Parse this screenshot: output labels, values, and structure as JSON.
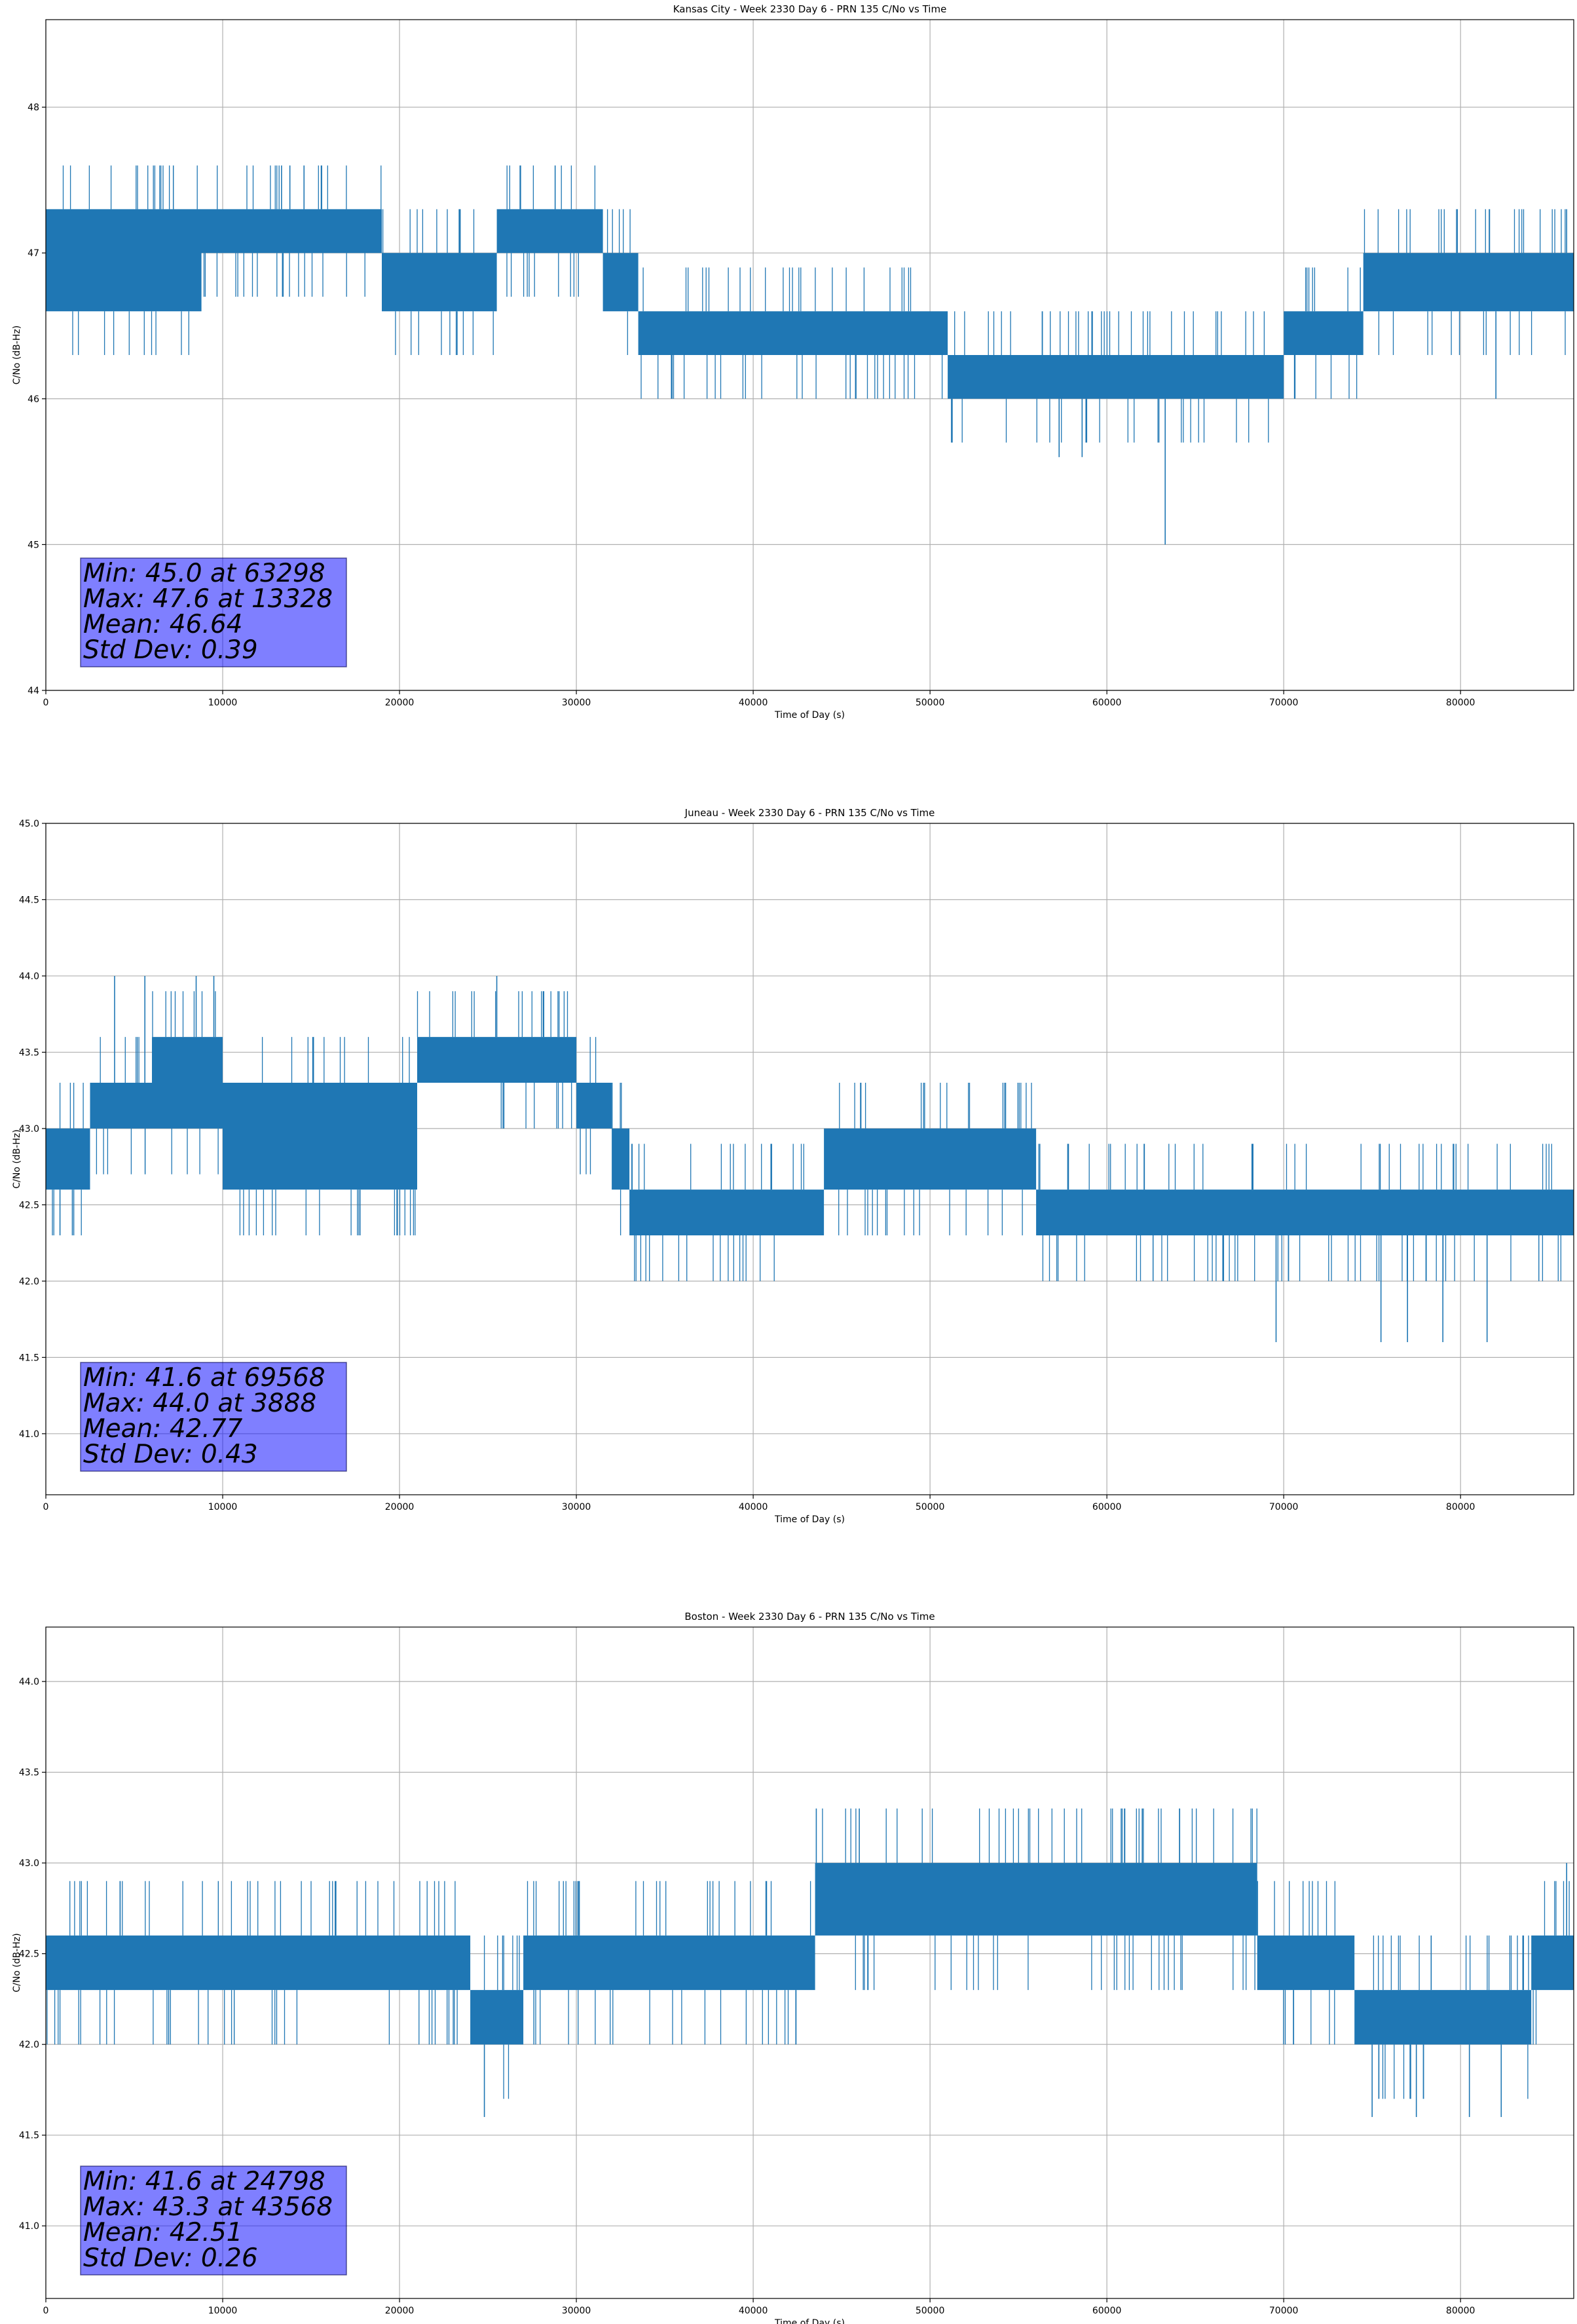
{
  "chart_data": [
    {
      "type": "line",
      "title": "Kansas City - Week 2330 Day 6 - PRN 135 C/No vs Time",
      "xlabel": "Time of Day (s)",
      "ylabel": "C/No (dB-Hz)",
      "xlim": [
        0,
        86400
      ],
      "ylim": [
        44.0,
        48.6
      ],
      "xticks": [
        0,
        10000,
        20000,
        30000,
        40000,
        50000,
        60000,
        70000,
        80000
      ],
      "xtick_labels": [
        "0",
        "10000",
        "20000",
        "30000",
        "40000",
        "50000",
        "60000",
        "70000",
        "80000"
      ],
      "yticks": [
        44,
        45,
        46,
        47,
        48
      ],
      "ytick_labels": [
        "44",
        "45",
        "46",
        "47",
        "48"
      ],
      "grid": true,
      "line_color": "#1f77b4",
      "band_segments": [
        {
          "x": [
            0,
            8800
          ],
          "low": 46.6,
          "high": 47.3
        },
        {
          "x": [
            8800,
            19000
          ],
          "low": 47.0,
          "high": 47.3
        },
        {
          "x": [
            19000,
            25500
          ],
          "low": 46.6,
          "high": 47.0
        },
        {
          "x": [
            25500,
            31500
          ],
          "low": 47.0,
          "high": 47.3
        },
        {
          "x": [
            31500,
            33500
          ],
          "low": 46.6,
          "high": 47.0
        },
        {
          "x": [
            33500,
            40000
          ],
          "low": 46.3,
          "high": 46.6
        },
        {
          "x": [
            40000,
            51000
          ],
          "low": 46.3,
          "high": 46.6
        },
        {
          "x": [
            51000,
            59000
          ],
          "low": 46.0,
          "high": 46.3
        },
        {
          "x": [
            59000,
            70000
          ],
          "low": 46.0,
          "high": 46.3
        },
        {
          "x": [
            70000,
            74500
          ],
          "low": 46.3,
          "high": 46.6
        },
        {
          "x": [
            74500,
            86400
          ],
          "low": 46.6,
          "high": 47.0
        }
      ],
      "spikes": [
        {
          "x": 13328,
          "y": 47.6
        },
        {
          "x": 13800,
          "y": 47.6
        },
        {
          "x": 14600,
          "y": 47.6
        },
        {
          "x": 28800,
          "y": 47.6
        },
        {
          "x": 63298,
          "y": 45.0
        },
        {
          "x": 57300,
          "y": 45.6
        },
        {
          "x": 58600,
          "y": 45.6
        },
        {
          "x": 82000,
          "y": 46.0
        },
        {
          "x": 86000,
          "y": 47.3
        }
      ],
      "stats_box": [
        "Min: 45.0 at 63298",
        "Max: 47.6 at 13328",
        "Mean: 46.64",
        "Std Dev: 0.39"
      ]
    },
    {
      "type": "line",
      "title": "Juneau - Week 2330 Day 6 - PRN 135 C/No vs Time",
      "xlabel": "Time of Day (s)",
      "ylabel": "C/No (dB-Hz)",
      "xlim": [
        0,
        86400
      ],
      "ylim": [
        40.6,
        45.0
      ],
      "xticks": [
        0,
        10000,
        20000,
        30000,
        40000,
        50000,
        60000,
        70000,
        80000
      ],
      "xtick_labels": [
        "0",
        "10000",
        "20000",
        "30000",
        "40000",
        "50000",
        "60000",
        "70000",
        "80000"
      ],
      "yticks": [
        41.0,
        41.5,
        42.0,
        42.5,
        43.0,
        43.5,
        44.0,
        44.5,
        45.0
      ],
      "ytick_labels": [
        "41.0",
        "41.5",
        "42.0",
        "42.5",
        "43.0",
        "43.5",
        "44.0",
        "44.5",
        "45.0"
      ],
      "grid": true,
      "line_color": "#1f77b4",
      "band_segments": [
        {
          "x": [
            0,
            2500
          ],
          "low": 42.6,
          "high": 43.0
        },
        {
          "x": [
            2500,
            6000
          ],
          "low": 43.0,
          "high": 43.3
        },
        {
          "x": [
            6000,
            10000
          ],
          "low": 43.0,
          "high": 43.6
        },
        {
          "x": [
            10000,
            21000
          ],
          "low": 42.6,
          "high": 43.3
        },
        {
          "x": [
            21000,
            30000
          ],
          "low": 43.3,
          "high": 43.6
        },
        {
          "x": [
            30000,
            32000
          ],
          "low": 43.0,
          "high": 43.3
        },
        {
          "x": [
            32000,
            33000
          ],
          "low": 42.6,
          "high": 43.0
        },
        {
          "x": [
            33000,
            44000
          ],
          "low": 42.3,
          "high": 42.6
        },
        {
          "x": [
            44000,
            56000
          ],
          "low": 42.6,
          "high": 43.0
        },
        {
          "x": [
            56000,
            66000
          ],
          "low": 42.3,
          "high": 42.6
        },
        {
          "x": [
            66000,
            86400
          ],
          "low": 42.3,
          "high": 42.6
        }
      ],
      "spikes": [
        {
          "x": 3888,
          "y": 44.0
        },
        {
          "x": 5600,
          "y": 44.0
        },
        {
          "x": 8500,
          "y": 44.0
        },
        {
          "x": 9500,
          "y": 44.0
        },
        {
          "x": 25500,
          "y": 44.0
        },
        {
          "x": 69568,
          "y": 41.6
        },
        {
          "x": 75500,
          "y": 41.6
        },
        {
          "x": 77000,
          "y": 41.6
        },
        {
          "x": 79000,
          "y": 41.6
        },
        {
          "x": 81500,
          "y": 41.6
        },
        {
          "x": 800,
          "y": 42.3
        },
        {
          "x": 1500,
          "y": 42.3
        }
      ],
      "stats_box": [
        "Min: 41.6 at 69568",
        "Max: 44.0 at 3888",
        "Mean: 42.77",
        "Std Dev: 0.43"
      ]
    },
    {
      "type": "line",
      "title": "Boston - Week 2330 Day 6 - PRN 135 C/No vs Time",
      "xlabel": "Time of Day (s)",
      "ylabel": "C/No (dB-Hz)",
      "xlim": [
        0,
        86400
      ],
      "ylim": [
        40.6,
        44.3
      ],
      "xticks": [
        0,
        10000,
        20000,
        30000,
        40000,
        50000,
        60000,
        70000,
        80000
      ],
      "xtick_labels": [
        "0",
        "10000",
        "20000",
        "30000",
        "40000",
        "50000",
        "60000",
        "70000",
        "80000"
      ],
      "yticks": [
        41.0,
        41.5,
        42.0,
        42.5,
        43.0,
        43.5,
        44.0
      ],
      "ytick_labels": [
        "41.0",
        "41.5",
        "42.0",
        "42.5",
        "43.0",
        "43.5",
        "44.0"
      ],
      "grid": true,
      "line_color": "#1f77b4",
      "band_segments": [
        {
          "x": [
            0,
            24000
          ],
          "low": 42.3,
          "high": 42.6
        },
        {
          "x": [
            24000,
            27000
          ],
          "low": 42.0,
          "high": 42.3
        },
        {
          "x": [
            27000,
            43500
          ],
          "low": 42.3,
          "high": 42.6
        },
        {
          "x": [
            43500,
            68500
          ],
          "low": 42.6,
          "high": 43.0
        },
        {
          "x": [
            68500,
            74000
          ],
          "low": 42.3,
          "high": 42.6
        },
        {
          "x": [
            74000,
            84000
          ],
          "low": 42.0,
          "high": 42.3
        },
        {
          "x": [
            84000,
            86400
          ],
          "low": 42.3,
          "high": 42.6
        }
      ],
      "spikes": [
        {
          "x": 24798,
          "y": 41.6
        },
        {
          "x": 43568,
          "y": 43.3
        },
        {
          "x": 46000,
          "y": 43.3
        },
        {
          "x": 62000,
          "y": 43.3
        },
        {
          "x": 75000,
          "y": 41.6
        },
        {
          "x": 77500,
          "y": 41.6
        },
        {
          "x": 80500,
          "y": 41.6
        },
        {
          "x": 82300,
          "y": 41.6
        },
        {
          "x": 86000,
          "y": 43.0
        }
      ],
      "stats_box": [
        "Min: 41.6 at 24798",
        "Max: 43.3 at 43568",
        "Mean: 42.51",
        "Std Dev: 0.26"
      ]
    }
  ]
}
